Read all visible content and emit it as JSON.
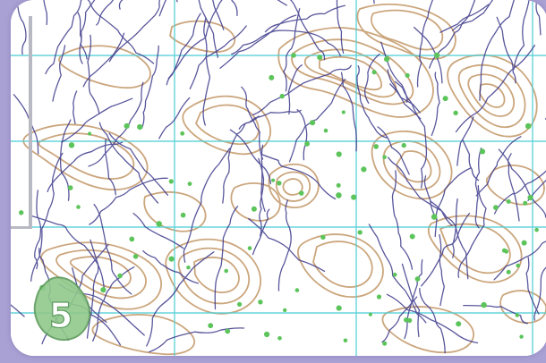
{
  "map": {
    "symbol_label": "5",
    "colors": {
      "background_outer": "#a9a1d3",
      "paper": "#ffffff",
      "contour": "#c9a277",
      "watercourse": "#3d3a8a",
      "grid": "#55d0d6",
      "vegetation_dot": "#5cc45a",
      "symbol_fill": "#8fc98b",
      "symbol_stroke": "#5e9b5c"
    }
  }
}
